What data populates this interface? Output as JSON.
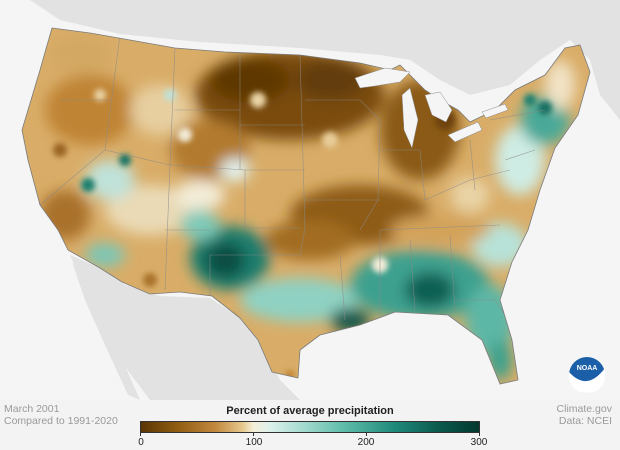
{
  "header": {
    "date_label": "March 2001",
    "baseline_label": "Compared to 1991-2020"
  },
  "legend": {
    "title": "Percent of average precipitation",
    "ticks": [
      "0",
      "100",
      "200",
      "300"
    ],
    "colors": {
      "dry_extreme": "#5a3504",
      "dry": "#c2883e",
      "normal": "#f6efd9",
      "wet": "#5fbcaa",
      "wet_extreme": "#02382e"
    }
  },
  "credits": {
    "source": "Climate.gov",
    "data": "Data: NCEI"
  },
  "logo": {
    "text": "NOAA",
    "color": "#1a5fa8"
  },
  "map": {
    "subject": "Contiguous United States",
    "colors": {
      "land_background": "#e2e2e2",
      "ocean": "#f5f5f5",
      "state_border": "#8a8a8a"
    }
  }
}
